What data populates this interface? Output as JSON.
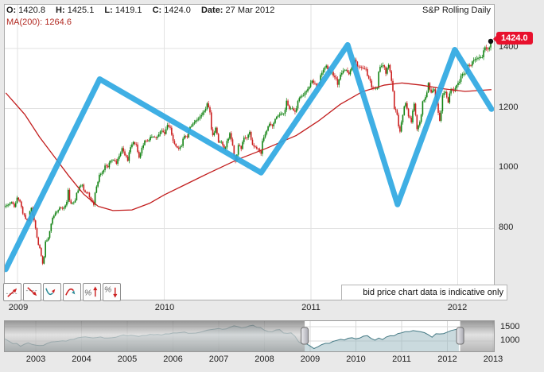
{
  "header": {
    "ohlc": [
      {
        "label": "O:",
        "value": "1420.8"
      },
      {
        "label": "H:",
        "value": "1425.1"
      },
      {
        "label": "L:",
        "value": "1419.1"
      },
      {
        "label": "C:",
        "value": "1424.0"
      },
      {
        "label": "Date:",
        "value": "27 Mar 2012"
      }
    ],
    "series_label": "S&P Rolling Daily",
    "ma_label": "MA(200):",
    "ma_value": "1264.6"
  },
  "price_badge": "1424.0",
  "disclaimer": "bid price chart data is indicative only",
  "toolbar": {
    "tools": [
      "trend-up",
      "trend-down",
      "valley-pattern",
      "peak-pattern",
      "percent-up",
      "percent-down"
    ]
  },
  "colors": {
    "up_candle": "#118312",
    "down_candle": "#cc2020",
    "ma_line": "#c21d1d",
    "annotation": "#2fa8e2",
    "badge_bg": "#e8112d",
    "grid": "#e2e2e2",
    "nav_line": "#457a85",
    "nav_fill": "#9fbcc2",
    "nav_grid": "#d8d8d8"
  },
  "chart_data": [
    {
      "type": "candlestick",
      "title": "S&P Rolling Daily",
      "x_ticks": [
        2009,
        2010,
        2011,
        2012
      ],
      "y_ticks": [
        1400,
        1200,
        1000,
        800
      ],
      "x_range": [
        2008.9,
        2012.32
      ],
      "y_range": [
        560,
        1550
      ],
      "grid": true,
      "start_year": 2008.92,
      "end_year": 2012.225,
      "last_price": 1424.0,
      "weekly_closes": [
        876,
        880,
        888,
        872,
        903,
        890,
        850,
        832,
        826,
        869,
        827,
        770,
        735,
        683,
        757,
        769,
        816,
        843,
        856,
        870,
        866,
        877,
        929,
        883,
        887,
        919,
        940,
        946,
        921,
        919,
        896,
        879,
        940,
        979,
        987,
        1010,
        1004,
        1026,
        1029,
        1016,
        1042,
        1068,
        1044,
        1025,
        1071,
        1088,
        1080,
        1036,
        1069,
        1093,
        1091,
        1106,
        1106,
        1102,
        1114,
        1126,
        1115,
        1145,
        1136,
        1092,
        1074,
        1066,
        1075,
        1109,
        1104,
        1139,
        1150,
        1160,
        1166,
        1178,
        1192,
        1217,
        1187,
        1111,
        1136,
        1088,
        1089,
        1065,
        1092,
        1118,
        1077,
        1023,
        1078,
        1065,
        1103,
        1102,
        1122,
        1079,
        1072,
        1065,
        1049,
        1104,
        1126,
        1149,
        1141,
        1165,
        1176,
        1183,
        1183,
        1226,
        1199,
        1200,
        1189,
        1225,
        1240,
        1244,
        1257,
        1272,
        1293,
        1283,
        1276,
        1311,
        1329,
        1343,
        1320,
        1321,
        1304,
        1279,
        1313,
        1326,
        1328,
        1314,
        1337,
        1363,
        1340,
        1338,
        1333,
        1331,
        1300,
        1271,
        1268,
        1268,
        1339,
        1344,
        1316,
        1345,
        1292,
        1199,
        1179,
        1123,
        1178,
        1218,
        1174,
        1154,
        1216,
        1131,
        1155,
        1224,
        1238,
        1285,
        1253,
        1264,
        1216,
        1159,
        1244,
        1255,
        1220,
        1265,
        1258,
        1278,
        1289,
        1315,
        1316,
        1345,
        1343,
        1361,
        1366,
        1370,
        1371,
        1404,
        1397,
        1424
      ],
      "ma200": {
        "label": "MA(200)",
        "value": 1264.6,
        "points": [
          [
            2008.92,
            1252
          ],
          [
            2009.05,
            1180
          ],
          [
            2009.15,
            1105
          ],
          [
            2009.25,
            1040
          ],
          [
            2009.35,
            975
          ],
          [
            2009.45,
            915
          ],
          [
            2009.55,
            874
          ],
          [
            2009.65,
            860
          ],
          [
            2009.78,
            862
          ],
          [
            2009.9,
            884
          ],
          [
            2010.0,
            912
          ],
          [
            2010.15,
            948
          ],
          [
            2010.3,
            984
          ],
          [
            2010.5,
            1030
          ],
          [
            2010.7,
            1068
          ],
          [
            2010.9,
            1110
          ],
          [
            2011.05,
            1158
          ],
          [
            2011.2,
            1214
          ],
          [
            2011.35,
            1256
          ],
          [
            2011.5,
            1278
          ],
          [
            2011.62,
            1285
          ],
          [
            2011.75,
            1278
          ],
          [
            2011.9,
            1266
          ],
          [
            2012.05,
            1257
          ],
          [
            2012.23,
            1263
          ]
        ]
      },
      "annotation_zigzag": [
        [
          2008.92,
          664
        ],
        [
          2009.56,
          1298
        ],
        [
          2010.66,
          986
        ],
        [
          2011.25,
          1412
        ],
        [
          2011.59,
          880
        ],
        [
          2011.98,
          1396
        ],
        [
          2012.23,
          1198
        ]
      ]
    },
    {
      "type": "area",
      "x_ticks": [
        2003,
        2004,
        2005,
        2006,
        2007,
        2008,
        2009,
        2010,
        2011,
        2012,
        2013
      ],
      "y_ticks": [
        1500,
        1000
      ],
      "start_year": 2002.25,
      "interval_years": 0.083333,
      "selected_range": [
        2008.88,
        2012.28
      ],
      "monthly_closes": [
        1077,
        1067,
        990,
        912,
        916,
        815,
        886,
        936,
        880,
        856,
        841,
        848,
        917,
        964,
        975,
        990,
        1008,
        996,
        1051,
        1058,
        1112,
        1131,
        1145,
        1126,
        1107,
        1121,
        1141,
        1102,
        1104,
        1115,
        1130,
        1174,
        1212,
        1181,
        1204,
        1181,
        1157,
        1192,
        1191,
        1234,
        1220,
        1229,
        1207,
        1249,
        1248,
        1280,
        1281,
        1295,
        1311,
        1270,
        1270,
        1277,
        1304,
        1336,
        1378,
        1401,
        1418,
        1438,
        1407,
        1421,
        1482,
        1531,
        1503,
        1455,
        1474,
        1527,
        1549,
        1481,
        1468,
        1379,
        1331,
        1323,
        1386,
        1400,
        1280,
        1267,
        1283,
        1166,
        969,
        896,
        903,
        826,
        735,
        798,
        873,
        919,
        919,
        987,
        1021,
        1057,
        1036,
        1096,
        1115,
        1074,
        1104,
        1169,
        1187,
        1089,
        1031,
        1102,
        1049,
        1141,
        1183,
        1181,
        1258,
        1286,
        1327,
        1326,
        1364,
        1345,
        1321,
        1292,
        1219,
        1131,
        1253,
        1247,
        1258,
        1312,
        1366,
        1397,
        1424
      ]
    }
  ]
}
